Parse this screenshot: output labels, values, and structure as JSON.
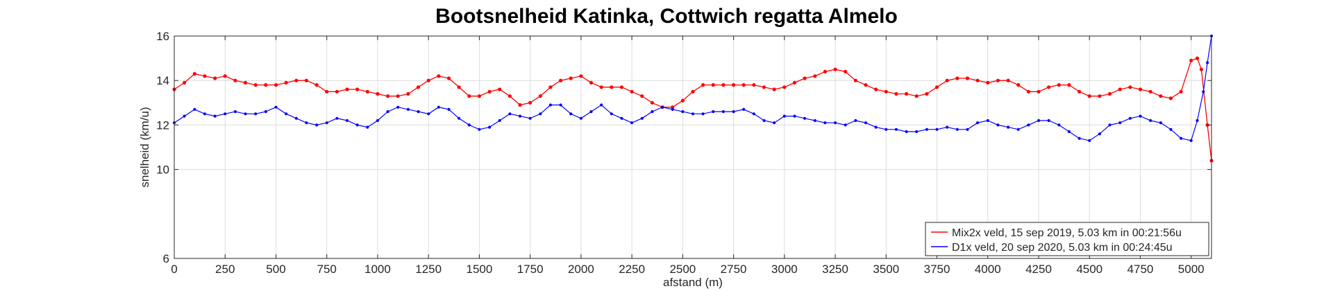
{
  "chart_data": {
    "type": "line",
    "title": "Bootsnelheid Katinka, Cottwich regatta Almelo",
    "xlabel": "afstand (m)",
    "ylabel": "snelheid (km/u)",
    "xlim": [
      0,
      5100
    ],
    "ylim": [
      6,
      16
    ],
    "xticks": [
      0,
      250,
      500,
      750,
      1000,
      1250,
      1500,
      1750,
      2000,
      2250,
      2500,
      2750,
      3000,
      3250,
      3500,
      3750,
      4000,
      4250,
      4500,
      4750,
      5000
    ],
    "yticks": [
      6,
      10,
      12,
      14,
      16
    ],
    "grid": true,
    "legend_position": "bottom-right",
    "series": [
      {
        "name": "Mix2x veld, 15 sep 2019, 5.03 km in 00:21:56u",
        "color": "#ff0000",
        "x": [
          0,
          50,
          100,
          150,
          200,
          250,
          300,
          350,
          400,
          450,
          500,
          550,
          600,
          650,
          700,
          750,
          800,
          850,
          900,
          950,
          1000,
          1050,
          1100,
          1150,
          1200,
          1250,
          1300,
          1350,
          1400,
          1450,
          1500,
          1550,
          1600,
          1650,
          1700,
          1750,
          1800,
          1850,
          1900,
          1950,
          2000,
          2050,
          2100,
          2150,
          2200,
          2250,
          2300,
          2350,
          2400,
          2450,
          2500,
          2550,
          2600,
          2650,
          2700,
          2750,
          2800,
          2850,
          2900,
          2950,
          3000,
          3050,
          3100,
          3150,
          3200,
          3250,
          3300,
          3350,
          3400,
          3450,
          3500,
          3550,
          3600,
          3650,
          3700,
          3750,
          3800,
          3850,
          3900,
          3950,
          4000,
          4050,
          4100,
          4150,
          4200,
          4250,
          4300,
          4350,
          4400,
          4450,
          4500,
          4550,
          4600,
          4650,
          4700,
          4750,
          4800,
          4850,
          4900,
          4950,
          5000,
          5030,
          5050,
          5080,
          5100
        ],
        "values": [
          13.6,
          13.9,
          14.3,
          14.2,
          14.1,
          14.2,
          14.0,
          13.9,
          13.8,
          13.8,
          13.8,
          13.9,
          14.0,
          14.0,
          13.8,
          13.5,
          13.5,
          13.6,
          13.6,
          13.5,
          13.4,
          13.3,
          13.3,
          13.4,
          13.7,
          14.0,
          14.2,
          14.1,
          13.7,
          13.3,
          13.3,
          13.5,
          13.6,
          13.3,
          12.9,
          13.0,
          13.3,
          13.7,
          14.0,
          14.1,
          14.2,
          13.9,
          13.7,
          13.7,
          13.7,
          13.5,
          13.3,
          13.0,
          12.8,
          12.8,
          13.1,
          13.5,
          13.8,
          13.8,
          13.8,
          13.8,
          13.8,
          13.8,
          13.7,
          13.6,
          13.7,
          13.9,
          14.1,
          14.2,
          14.4,
          14.5,
          14.4,
          14.0,
          13.8,
          13.6,
          13.5,
          13.4,
          13.4,
          13.3,
          13.4,
          13.7,
          14.0,
          14.1,
          14.1,
          14.0,
          13.9,
          14.0,
          14.0,
          13.8,
          13.5,
          13.5,
          13.7,
          13.8,
          13.8,
          13.5,
          13.3,
          13.3,
          13.4,
          13.6,
          13.7,
          13.6,
          13.5,
          13.3,
          13.2,
          13.5,
          14.9,
          15.0,
          14.5,
          12.0,
          10.4
        ]
      },
      {
        "name": "D1x veld, 20 sep 2020, 5.03 km in 00:24:45u",
        "color": "#0000ff",
        "x": [
          0,
          50,
          100,
          150,
          200,
          250,
          300,
          350,
          400,
          450,
          500,
          550,
          600,
          650,
          700,
          750,
          800,
          850,
          900,
          950,
          1000,
          1050,
          1100,
          1150,
          1200,
          1250,
          1300,
          1350,
          1400,
          1450,
          1500,
          1550,
          1600,
          1650,
          1700,
          1750,
          1800,
          1850,
          1900,
          1950,
          2000,
          2050,
          2100,
          2150,
          2200,
          2250,
          2300,
          2350,
          2400,
          2450,
          2500,
          2550,
          2600,
          2650,
          2700,
          2750,
          2800,
          2850,
          2900,
          2950,
          3000,
          3050,
          3100,
          3150,
          3200,
          3250,
          3300,
          3350,
          3400,
          3450,
          3500,
          3550,
          3600,
          3650,
          3700,
          3750,
          3800,
          3850,
          3900,
          3950,
          4000,
          4050,
          4100,
          4150,
          4200,
          4250,
          4300,
          4350,
          4400,
          4450,
          4500,
          4550,
          4600,
          4650,
          4700,
          4750,
          4800,
          4850,
          4900,
          4950,
          5000,
          5030,
          5060,
          5080,
          5100
        ],
        "values": [
          12.1,
          12.4,
          12.7,
          12.5,
          12.4,
          12.5,
          12.6,
          12.5,
          12.5,
          12.6,
          12.8,
          12.5,
          12.3,
          12.1,
          12.0,
          12.1,
          12.3,
          12.2,
          12.0,
          11.9,
          12.2,
          12.6,
          12.8,
          12.7,
          12.6,
          12.5,
          12.8,
          12.7,
          12.3,
          12.0,
          11.8,
          11.9,
          12.2,
          12.5,
          12.4,
          12.3,
          12.5,
          12.9,
          12.9,
          12.5,
          12.3,
          12.6,
          12.9,
          12.5,
          12.3,
          12.1,
          12.3,
          12.6,
          12.8,
          12.7,
          12.6,
          12.5,
          12.5,
          12.6,
          12.6,
          12.6,
          12.7,
          12.5,
          12.2,
          12.1,
          12.4,
          12.4,
          12.3,
          12.2,
          12.1,
          12.1,
          12.0,
          12.2,
          12.1,
          11.9,
          11.8,
          11.8,
          11.7,
          11.7,
          11.8,
          11.8,
          11.9,
          11.8,
          11.8,
          12.1,
          12.2,
          12.0,
          11.9,
          11.8,
          12.0,
          12.2,
          12.2,
          12.0,
          11.7,
          11.4,
          11.3,
          11.6,
          12.0,
          12.1,
          12.3,
          12.4,
          12.2,
          12.1,
          11.8,
          11.4,
          11.3,
          12.2,
          13.5,
          14.8,
          16.0
        ]
      }
    ]
  }
}
